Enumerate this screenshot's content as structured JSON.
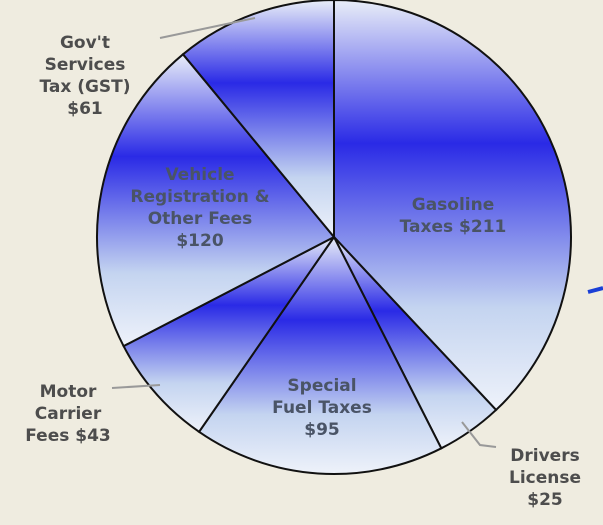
{
  "chart_data": {
    "type": "pie",
    "categories": [
      "Gasoline Taxes",
      "Drivers License",
      "Special Fuel Taxes",
      "Motor Carrier Fees",
      "Vehicle Registration & Other Fees",
      "Gov't Services Tax (GST)"
    ],
    "values": [
      211,
      25,
      95,
      43,
      120,
      61
    ],
    "value_labels": [
      "$211",
      "$25",
      "$95",
      "$43",
      "$120",
      "$61"
    ],
    "color": "#2a2ae6"
  }
}
